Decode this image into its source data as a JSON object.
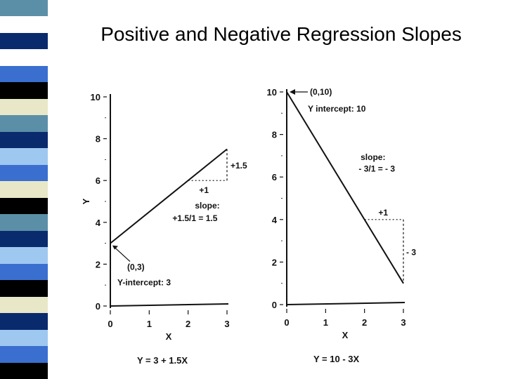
{
  "title": "Positive and Negative Regression Slopes",
  "stripe_colors": [
    "#5b8fa8",
    "#ffffff",
    "#0a2a6e",
    "#ffffff",
    "#3a6fd0",
    "#000000",
    "#e8e8c8",
    "#5b8fa8",
    "#0a2a6e",
    "#9ec8f0",
    "#3a6fd0",
    "#e8e8c8",
    "#000000",
    "#5b8fa8",
    "#0a2a6e",
    "#9ec8f0",
    "#3a6fd0",
    "#000000",
    "#e8e8c8",
    "#0a2a6e",
    "#9ec8f0",
    "#3a6fd0",
    "#000000"
  ],
  "chart_data": [
    {
      "type": "line",
      "x": [
        0,
        3
      ],
      "y": [
        3,
        7.5
      ],
      "xlabel": "X",
      "ylabel": "Y",
      "xticks": [
        "0",
        "1",
        "2",
        "3"
      ],
      "yticks": [
        "0",
        "2",
        "4",
        "6",
        "8",
        "10"
      ],
      "xlim": [
        0,
        3
      ],
      "ylim": [
        0,
        10
      ],
      "annotations": {
        "point": "(0,3)",
        "intercept": "Y-intercept: 3",
        "run": "+1",
        "rise": "+1.5",
        "slope_label": "slope:",
        "slope_value": "+1.5/1 = 1.5"
      },
      "equation": "Y = 3 + 1.5X"
    },
    {
      "type": "line",
      "x": [
        0,
        3
      ],
      "y": [
        10,
        1
      ],
      "xlabel": "X",
      "ylabel": "",
      "xticks": [
        "0",
        "1",
        "2",
        "3"
      ],
      "yticks": [
        "0",
        "2",
        "4",
        "6",
        "8",
        "10"
      ],
      "xlim": [
        0,
        3
      ],
      "ylim": [
        0,
        10
      ],
      "annotations": {
        "point": "(0,10)",
        "intercept": "Y intercept: 10",
        "run": "+1",
        "rise": "- 3",
        "slope_label": "slope:",
        "slope_value": "- 3/1 = - 3"
      },
      "equation": "Y = 10 - 3X"
    }
  ]
}
